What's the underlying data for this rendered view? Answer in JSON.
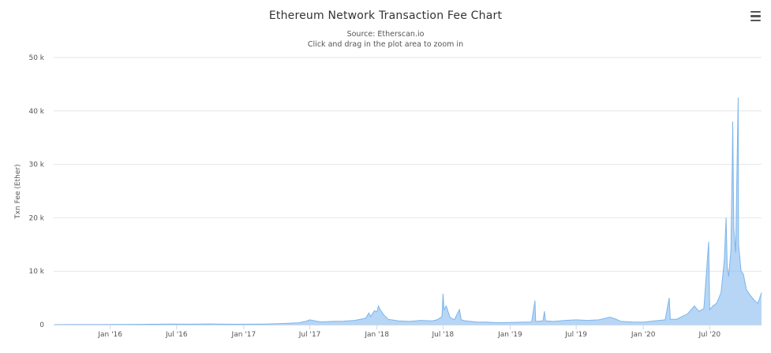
{
  "chart_data": {
    "type": "area",
    "title": "Ethereum Network Transaction Fee Chart",
    "subtitles": [
      "Source: Etherscan.io",
      "Click and drag in the plot area to zoom in"
    ],
    "xlabel": "",
    "ylabel": "Txn Fee (Ether)",
    "x_range": [
      "2015-07-30",
      "2020-11-20"
    ],
    "ylim": [
      0,
      50000
    ],
    "y_ticks": [
      0,
      10000,
      20000,
      30000,
      40000,
      50000
    ],
    "y_tick_labels": [
      "0",
      "10 k",
      "20 k",
      "30 k",
      "40 k",
      "50 k"
    ],
    "x_tick_dates": [
      "2016-01-01",
      "2016-07-01",
      "2017-01-01",
      "2017-07-01",
      "2018-01-01",
      "2018-07-01",
      "2019-01-01",
      "2019-07-01",
      "2020-01-01",
      "2020-07-01"
    ],
    "x_tick_labels": [
      "Jan '16",
      "Jul '16",
      "Jan '17",
      "Jul '17",
      "Jan '18",
      "Jul '18",
      "Jan '19",
      "Jul '19",
      "Jan '20",
      "Jul '20"
    ],
    "grid": true,
    "legend": "none",
    "series": [
      {
        "color": "#7cb5ec",
        "points": [
          [
            "2015-08-01",
            2
          ],
          [
            "2015-10-01",
            8
          ],
          [
            "2015-12-01",
            10
          ],
          [
            "2016-02-01",
            30
          ],
          [
            "2016-04-01",
            60
          ],
          [
            "2016-06-15",
            120
          ],
          [
            "2016-08-01",
            90
          ],
          [
            "2016-10-01",
            130
          ],
          [
            "2016-12-01",
            80
          ],
          [
            "2017-01-15",
            90
          ],
          [
            "2017-03-01",
            120
          ],
          [
            "2017-04-15",
            200
          ],
          [
            "2017-06-01",
            350
          ],
          [
            "2017-06-20",
            600
          ],
          [
            "2017-07-01",
            900
          ],
          [
            "2017-07-15",
            700
          ],
          [
            "2017-08-01",
            500
          ],
          [
            "2017-09-01",
            600
          ],
          [
            "2017-10-01",
            650
          ],
          [
            "2017-11-01",
            800
          ],
          [
            "2017-12-01",
            1200
          ],
          [
            "2017-12-10",
            2200
          ],
          [
            "2017-12-15",
            1500
          ],
          [
            "2017-12-25",
            2600
          ],
          [
            "2018-01-01",
            2400
          ],
          [
            "2018-01-05",
            3500
          ],
          [
            "2018-01-10",
            2800
          ],
          [
            "2018-01-20",
            1800
          ],
          [
            "2018-02-01",
            1000
          ],
          [
            "2018-03-01",
            700
          ],
          [
            "2018-04-01",
            600
          ],
          [
            "2018-05-01",
            800
          ],
          [
            "2018-06-01",
            700
          ],
          [
            "2018-06-15",
            900
          ],
          [
            "2018-06-28",
            1500
          ],
          [
            "2018-07-01",
            5800
          ],
          [
            "2018-07-04",
            2800
          ],
          [
            "2018-07-10",
            3500
          ],
          [
            "2018-07-20",
            1400
          ],
          [
            "2018-08-01",
            900
          ],
          [
            "2018-08-15",
            2800
          ],
          [
            "2018-08-20",
            900
          ],
          [
            "2018-09-01",
            700
          ],
          [
            "2018-10-01",
            500
          ],
          [
            "2018-11-01",
            450
          ],
          [
            "2018-12-01",
            350
          ],
          [
            "2019-01-01",
            400
          ],
          [
            "2019-02-01",
            450
          ],
          [
            "2019-03-01",
            500
          ],
          [
            "2019-03-10",
            4500
          ],
          [
            "2019-03-12",
            600
          ],
          [
            "2019-04-01",
            700
          ],
          [
            "2019-04-05",
            2500
          ],
          [
            "2019-04-08",
            700
          ],
          [
            "2019-05-01",
            600
          ],
          [
            "2019-06-01",
            800
          ],
          [
            "2019-07-01",
            900
          ],
          [
            "2019-08-01",
            800
          ],
          [
            "2019-09-01",
            900
          ],
          [
            "2019-10-01",
            1400
          ],
          [
            "2019-10-15",
            1100
          ],
          [
            "2019-11-01",
            600
          ],
          [
            "2019-12-01",
            500
          ],
          [
            "2020-01-01",
            450
          ],
          [
            "2020-02-01",
            700
          ],
          [
            "2020-03-01",
            900
          ],
          [
            "2020-03-12",
            5000
          ],
          [
            "2020-03-15",
            1000
          ],
          [
            "2020-04-01",
            1000
          ],
          [
            "2020-05-01",
            2000
          ],
          [
            "2020-05-20",
            3500
          ],
          [
            "2020-06-01",
            2500
          ],
          [
            "2020-06-15",
            3000
          ],
          [
            "2020-06-28",
            15500
          ],
          [
            "2020-07-01",
            2800
          ],
          [
            "2020-07-10",
            3500
          ],
          [
            "2020-07-20",
            4000
          ],
          [
            "2020-08-01",
            6000
          ],
          [
            "2020-08-10",
            12000
          ],
          [
            "2020-08-15",
            20000
          ],
          [
            "2020-08-18",
            11000
          ],
          [
            "2020-08-22",
            9000
          ],
          [
            "2020-08-28",
            14000
          ],
          [
            "2020-09-01",
            31000
          ],
          [
            "2020-09-02",
            38000
          ],
          [
            "2020-09-05",
            18000
          ],
          [
            "2020-09-10",
            13500
          ],
          [
            "2020-09-17",
            42500
          ],
          [
            "2020-09-18",
            15000
          ],
          [
            "2020-09-25",
            10000
          ],
          [
            "2020-10-01",
            9500
          ],
          [
            "2020-10-10",
            6500
          ],
          [
            "2020-10-20",
            5500
          ],
          [
            "2020-11-01",
            4500
          ],
          [
            "2020-11-10",
            4000
          ],
          [
            "2020-11-20",
            6000
          ]
        ]
      }
    ]
  }
}
